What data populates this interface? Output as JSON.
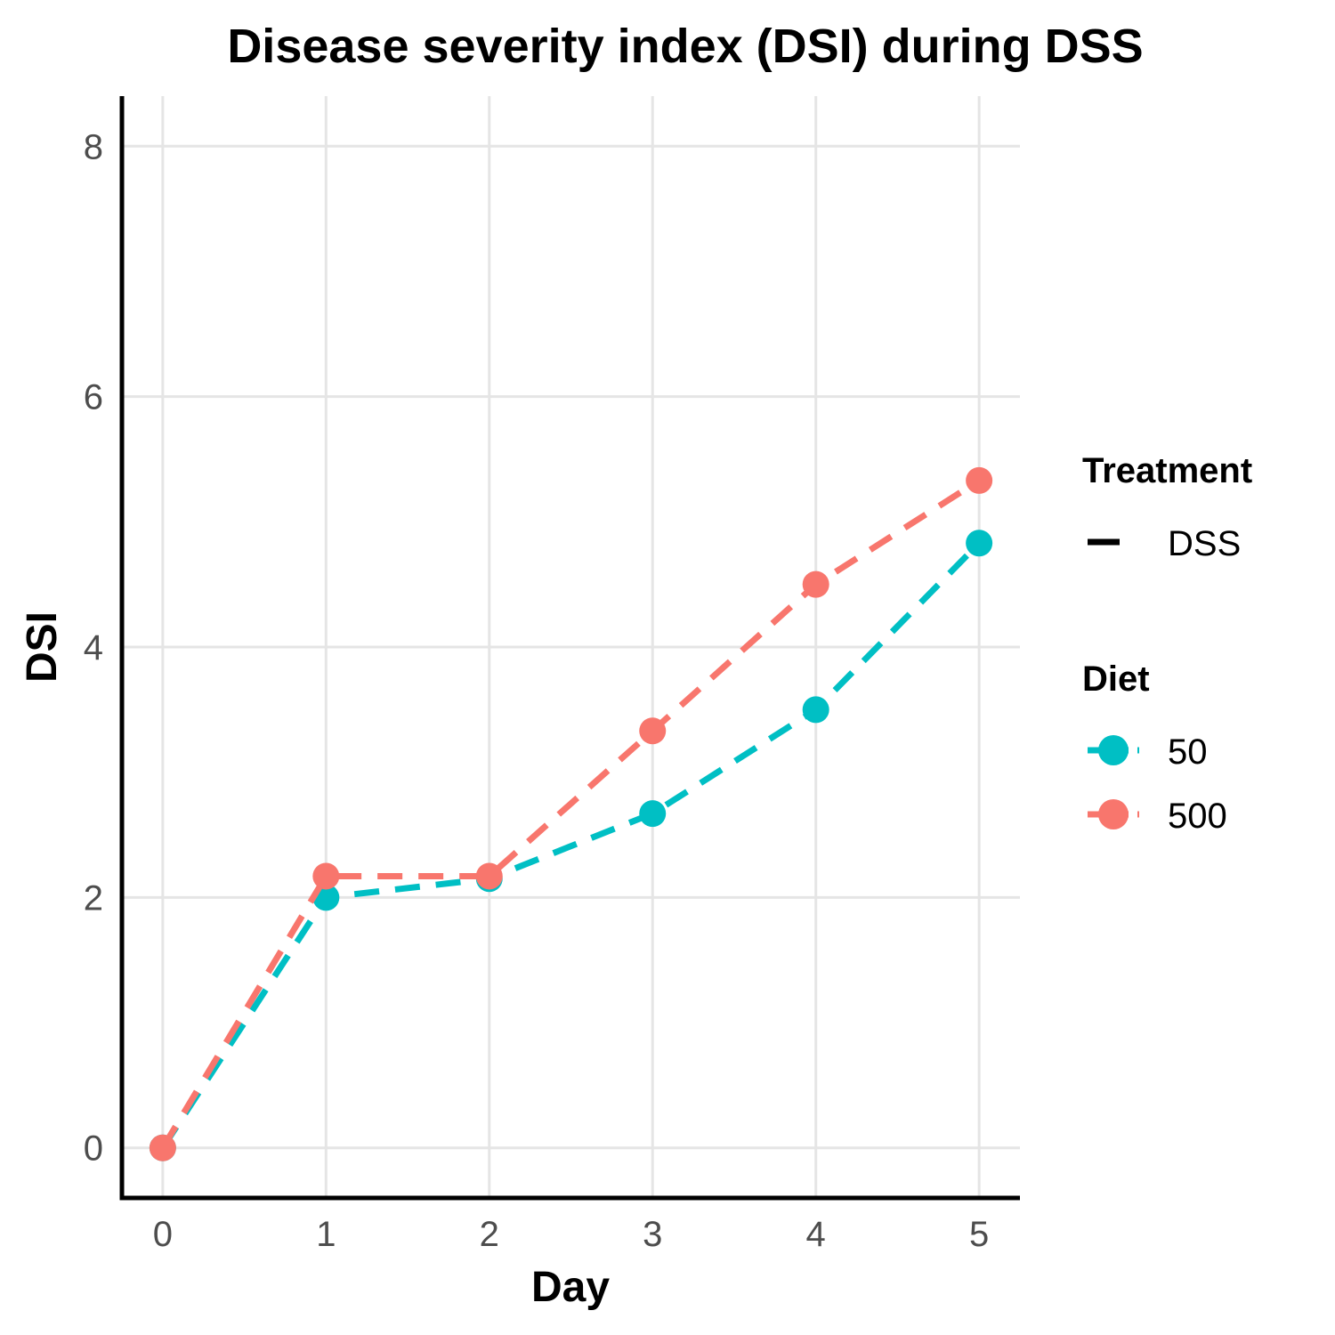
{
  "chart_data": {
    "type": "line",
    "title": "Disease severity index (DSI) during DSS",
    "xlabel": "Day",
    "ylabel": "DSI",
    "x": [
      0,
      1,
      2,
      3,
      4,
      5
    ],
    "xlim": [
      -0.25,
      5.25
    ],
    "ylim": [
      -0.4,
      8.4
    ],
    "xticks": [
      0,
      1,
      2,
      3,
      4,
      5
    ],
    "yticks": [
      0,
      2,
      4,
      6,
      8
    ],
    "grid": true,
    "legend_position": "right",
    "legend": {
      "treatment_title": "Treatment",
      "treatment_entries": [
        "DSS"
      ],
      "diet_title": "Diet",
      "diet_entries": [
        "50",
        "500"
      ]
    },
    "series": [
      {
        "name": "50",
        "color": "#00BFC4",
        "linestyle": "dashed",
        "values": [
          0,
          2.0,
          2.15,
          2.67,
          3.5,
          4.83
        ]
      },
      {
        "name": "500",
        "color": "#F8766D",
        "linestyle": "dashed",
        "values": [
          0,
          2.17,
          2.17,
          3.33,
          4.5,
          5.33
        ]
      }
    ]
  }
}
